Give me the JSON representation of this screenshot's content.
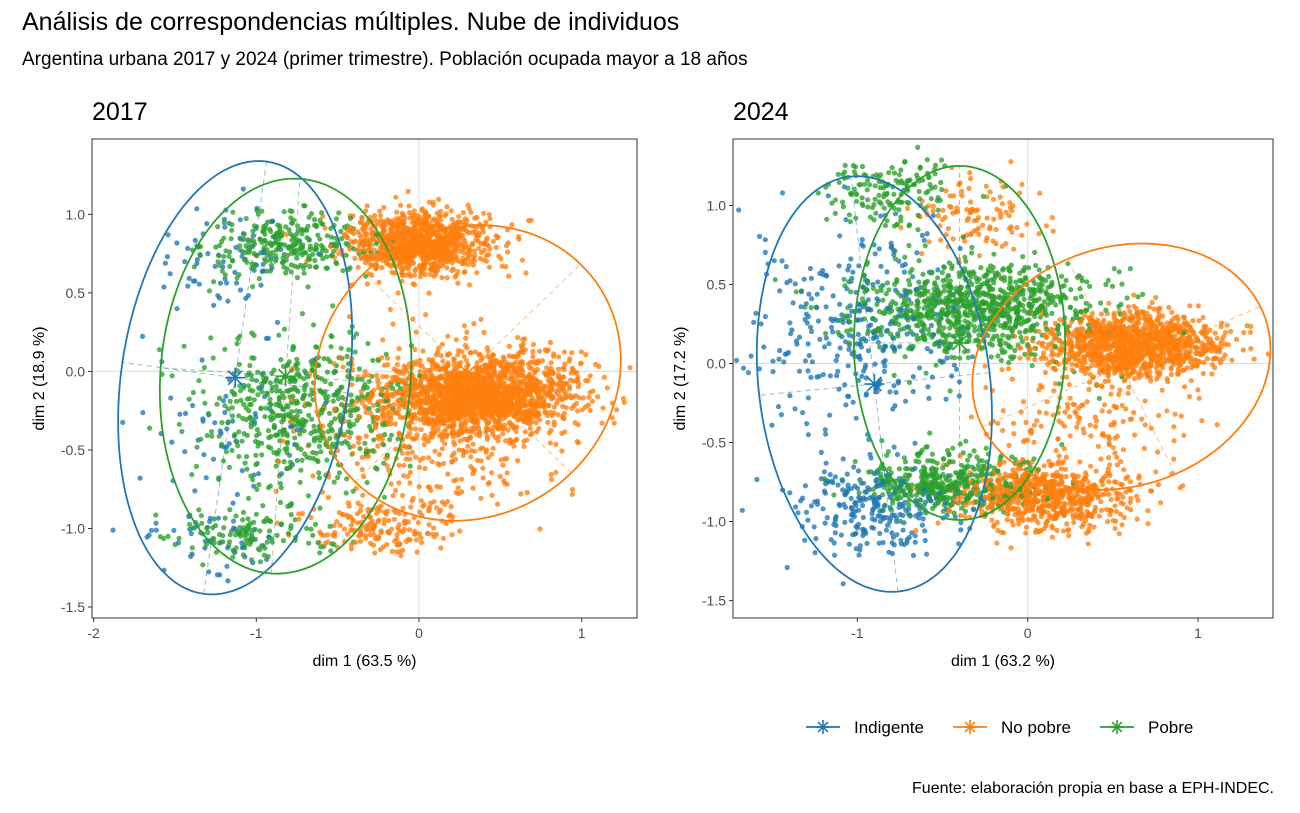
{
  "title": "Análisis de correspondencias múltiples. Nube de individuos",
  "subtitle": "Argentina urbana 2017 y 2024 (primer trimestre). Población ocupada mayor a 18 años",
  "source": "Fuente: elaboración propia en base a EPH-INDEC.",
  "colors": {
    "Indigente": "#1f77b4",
    "No pobre": "#ff7f0e",
    "Pobre": "#2ca02c"
  },
  "chart_data": [
    {
      "type": "scatter",
      "title": "2017",
      "xlabel": "dim 1 (63.5 %)",
      "ylabel": "dim 2 (18.9 %)",
      "xlim": [
        -2.01,
        1.34
      ],
      "ylim": [
        -1.57,
        1.48
      ],
      "xticks": [
        {
          "v": -2,
          "label": "-2"
        },
        {
          "v": -1,
          "label": "-1"
        },
        {
          "v": 0,
          "label": "0"
        },
        {
          "v": 1,
          "label": "1"
        }
      ],
      "yticks": [
        {
          "v": 1.0,
          "label": "1.0"
        },
        {
          "v": 0.5,
          "label": "0.5"
        },
        {
          "v": 0.0,
          "label": "0.0"
        },
        {
          "v": -0.5,
          "label": "-0.5"
        },
        {
          "v": -1.0,
          "label": "-1.0"
        },
        {
          "v": -1.5,
          "label": "-1.5"
        }
      ],
      "grid": "zero-lines",
      "point_clusters": [
        {
          "group": "Indigente",
          "center": [
            -1.2,
            0.72
          ],
          "sd": [
            0.25,
            0.18
          ],
          "n": 70
        },
        {
          "group": "Indigente",
          "center": [
            -1.1,
            -0.4
          ],
          "sd": [
            0.3,
            0.3
          ],
          "n": 70
        },
        {
          "group": "Indigente",
          "center": [
            -1.35,
            -1.05
          ],
          "sd": [
            0.2,
            0.09
          ],
          "n": 40
        },
        {
          "group": "Pobre",
          "center": [
            -0.8,
            0.8
          ],
          "sd": [
            0.25,
            0.1
          ],
          "n": 280
        },
        {
          "group": "Pobre",
          "center": [
            -0.7,
            -0.25
          ],
          "sd": [
            0.3,
            0.25
          ],
          "n": 550
        },
        {
          "group": "Pobre",
          "center": [
            -1.05,
            -1.05
          ],
          "sd": [
            0.25,
            0.08
          ],
          "n": 120
        },
        {
          "group": "No pobre",
          "center": [
            0.0,
            0.82
          ],
          "sd": [
            0.22,
            0.1
          ],
          "n": 1000
        },
        {
          "group": "No pobre",
          "center": [
            0.38,
            -0.15
          ],
          "sd": [
            0.3,
            0.12
          ],
          "n": 1700
        },
        {
          "group": "No pobre",
          "center": [
            0.1,
            -0.4
          ],
          "sd": [
            0.35,
            0.28
          ],
          "n": 400
        },
        {
          "group": "No pobre",
          "center": [
            -0.25,
            -1.0
          ],
          "sd": [
            0.2,
            0.1
          ],
          "n": 160
        }
      ],
      "ellipses": [
        {
          "group": "Indigente",
          "center": [
            -1.13,
            -0.04
          ],
          "semi_major": 1.39,
          "semi_minor": 0.7,
          "angle_deg": 82
        },
        {
          "group": "Pobre",
          "center": [
            -0.82,
            -0.03
          ],
          "semi_major": 1.26,
          "semi_minor": 0.77,
          "angle_deg": 86
        },
        {
          "group": "No pobre",
          "center": [
            0.3,
            -0.01
          ],
          "semi_major": 0.98,
          "semi_minor": 0.9,
          "angle_deg": 45
        }
      ],
      "centroids": [
        {
          "group": "Indigente",
          "x": -1.13,
          "y": -0.04
        },
        {
          "group": "Pobre",
          "x": -0.82,
          "y": -0.03
        },
        {
          "group": "No pobre",
          "x": 0.3,
          "y": -0.01
        }
      ]
    },
    {
      "type": "scatter",
      "title": "2024",
      "xlabel": "dim 1 (63.2 %)",
      "ylabel": "dim 2 (17.2 %)",
      "xlim": [
        -1.73,
        1.44
      ],
      "ylim": [
        -1.61,
        1.42
      ],
      "xticks": [
        {
          "v": -1,
          "label": "-1"
        },
        {
          "v": 0,
          "label": "0"
        },
        {
          "v": 1,
          "label": "1"
        }
      ],
      "yticks": [
        {
          "v": 1.0,
          "label": "1.0"
        },
        {
          "v": 0.5,
          "label": "0.5"
        },
        {
          "v": 0.0,
          "label": "0.0"
        },
        {
          "v": -0.5,
          "label": "-0.5"
        },
        {
          "v": -1.0,
          "label": "-1.0"
        },
        {
          "v": -1.5,
          "label": "-1.5"
        }
      ],
      "grid": "zero-lines",
      "point_clusters": [
        {
          "group": "Indigente",
          "center": [
            -1.0,
            0.25
          ],
          "sd": [
            0.3,
            0.32
          ],
          "n": 320
        },
        {
          "group": "Indigente",
          "center": [
            -0.9,
            -0.9
          ],
          "sd": [
            0.25,
            0.15
          ],
          "n": 260
        },
        {
          "group": "Pobre",
          "center": [
            -0.3,
            0.35
          ],
          "sd": [
            0.35,
            0.15
          ],
          "n": 900
        },
        {
          "group": "Pobre",
          "center": [
            -0.45,
            -0.75
          ],
          "sd": [
            0.25,
            0.1
          ],
          "n": 420
        },
        {
          "group": "Pobre",
          "center": [
            -0.8,
            1.1
          ],
          "sd": [
            0.2,
            0.1
          ],
          "n": 150
        },
        {
          "group": "No pobre",
          "center": [
            0.6,
            0.12
          ],
          "sd": [
            0.25,
            0.1
          ],
          "n": 1200
        },
        {
          "group": "No pobre",
          "center": [
            0.1,
            -0.85
          ],
          "sd": [
            0.25,
            0.1
          ],
          "n": 700
        },
        {
          "group": "No pobre",
          "center": [
            -0.3,
            0.9
          ],
          "sd": [
            0.2,
            0.15
          ],
          "n": 110
        },
        {
          "group": "No pobre",
          "center": [
            0.35,
            -0.4
          ],
          "sd": [
            0.3,
            0.2
          ],
          "n": 160
        }
      ],
      "ellipses": [
        {
          "group": "Indigente",
          "center": [
            -0.9,
            -0.13
          ],
          "semi_major": 1.32,
          "semi_minor": 0.68,
          "angle_deg": 96
        },
        {
          "group": "Pobre",
          "center": [
            -0.4,
            0.13
          ],
          "semi_major": 1.12,
          "semi_minor": 0.62,
          "angle_deg": 90
        },
        {
          "group": "No pobre",
          "center": [
            0.55,
            -0.02
          ],
          "semi_major": 0.9,
          "semi_minor": 0.75,
          "angle_deg": 25
        }
      ],
      "centroids": [
        {
          "group": "Indigente",
          "x": -0.9,
          "y": -0.13
        },
        {
          "group": "Pobre",
          "x": -0.4,
          "y": 0.13
        },
        {
          "group": "No pobre",
          "x": 0.55,
          "y": -0.02
        }
      ]
    }
  ],
  "legend": {
    "position": "bottom",
    "items": [
      "Indigente",
      "No pobre",
      "Pobre"
    ]
  }
}
